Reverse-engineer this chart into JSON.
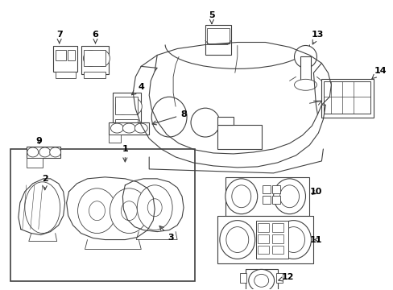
{
  "bg_color": "#ffffff",
  "line_color": "#404040",
  "text_color": "#000000",
  "fig_width": 4.89,
  "fig_height": 3.6,
  "dpi": 100,
  "label_positions": {
    "1": [
      0.275,
      0.51,
      0.24,
      0.535
    ],
    "2": [
      0.06,
      0.655,
      0.085,
      0.67
    ],
    "3": [
      0.21,
      0.72,
      0.195,
      0.705
    ],
    "4": [
      0.31,
      0.31,
      0.31,
      0.34
    ],
    "5": [
      0.54,
      0.058,
      0.54,
      0.09
    ],
    "6": [
      0.23,
      0.148,
      0.23,
      0.175
    ],
    "7": [
      0.152,
      0.148,
      0.155,
      0.175
    ],
    "8": [
      0.23,
      0.368,
      0.235,
      0.395
    ],
    "9": [
      0.075,
      0.43,
      0.095,
      0.455
    ],
    "10": [
      0.71,
      0.575,
      0.69,
      0.575
    ],
    "11": [
      0.71,
      0.66,
      0.69,
      0.66
    ],
    "12": [
      0.69,
      0.78,
      0.668,
      0.775
    ],
    "13": [
      0.79,
      0.148,
      0.79,
      0.175
    ],
    "14": [
      0.88,
      0.24,
      0.88,
      0.268
    ]
  }
}
